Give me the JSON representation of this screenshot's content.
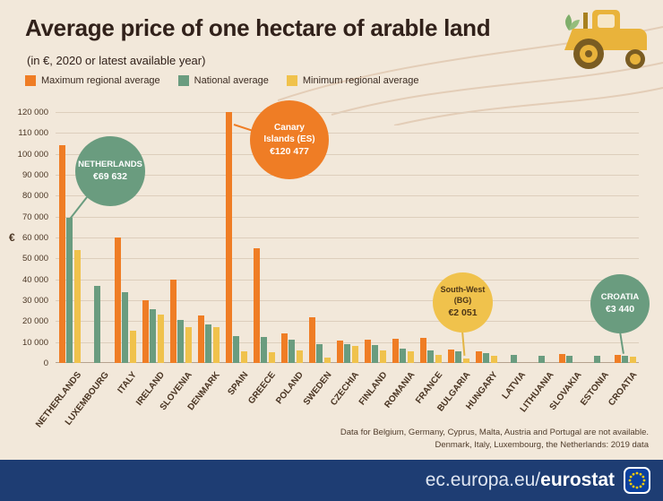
{
  "header": {
    "title": "Average price of one hectare of arable land",
    "subtitle": "(in €, 2020 or latest available year)"
  },
  "legend": [
    {
      "label": "Maximum regional average",
      "color": "#ef7d25"
    },
    {
      "label": "National average",
      "color": "#6a9c7f"
    },
    {
      "label": "Minimum regional average",
      "color": "#f0c24c"
    }
  ],
  "chart_data": {
    "type": "bar",
    "title": "Average price of one hectare of arable land (in €, 2020 or latest available year)",
    "categories": [
      "NETHERLANDS",
      "LUXEMBOURG",
      "ITALY",
      "IRELAND",
      "SLOVENIA",
      "DENMARK",
      "SPAIN",
      "GREECE",
      "POLAND",
      "SWEDEN",
      "CZECHIA",
      "FINLAND",
      "ROMANIA",
      "FRANCE",
      "BULGARIA",
      "HUNGARY",
      "LATVIA",
      "LITHUANIA",
      "SLOVAKIA",
      "ESTONIA",
      "CROATIA"
    ],
    "series": [
      {
        "name": "Maximum regional average",
        "color": "#ef7d25",
        "values": [
          104000,
          null,
          60000,
          30000,
          40000,
          22500,
          120477,
          55000,
          14000,
          22000,
          10500,
          11000,
          11500,
          12000,
          6500,
          5500,
          null,
          null,
          4300,
          null,
          3900
        ]
      },
      {
        "name": "National average",
        "color": "#6a9c7f",
        "values": [
          69632,
          37000,
          34000,
          25500,
          20500,
          18500,
          13000,
          12500,
          11000,
          9000,
          9000,
          8500,
          7000,
          6000,
          5500,
          4800,
          4000,
          3500,
          3500,
          3300,
          3440
        ]
      },
      {
        "name": "Minimum regional average",
        "color": "#f0c24c",
        "values": [
          54000,
          null,
          15500,
          23000,
          17000,
          17000,
          5500,
          5000,
          6000,
          2500,
          8000,
          6000,
          5500,
          4000,
          2051,
          3500,
          null,
          null,
          null,
          null,
          3000
        ]
      }
    ],
    "xlabel": "",
    "ylabel": "€",
    "ylim": [
      0,
      120000
    ],
    "ytick_step": 10000,
    "grid": true,
    "legend_position": "top"
  },
  "callouts": {
    "netherlands": {
      "line1": "NETHERLANDS",
      "line2": "€69 632"
    },
    "canary": {
      "line1": "Canary",
      "line2": "Islands (ES)",
      "line3": "€120 477"
    },
    "southwest": {
      "line1": "South-West",
      "line2": "(BG)",
      "line3": "€2 051"
    },
    "croatia": {
      "line1": "CROATIA",
      "line2": "€3 440"
    }
  },
  "footnotes": [
    "Data for Belgium, Germany, Cyprus, Malta, Austria and Portugal are not available.",
    "Denmark, Italy, Luxembourg, the Netherlands: 2019 data"
  ],
  "footer": {
    "url_prefix": "ec.europa.eu/",
    "url_bold": "eurostat"
  }
}
